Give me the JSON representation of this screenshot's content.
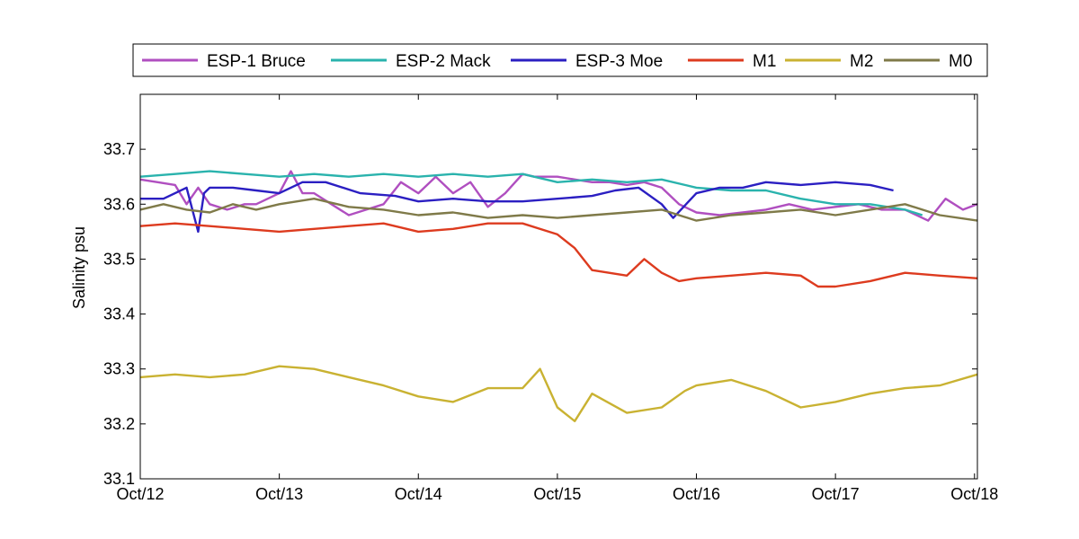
{
  "chart_data": {
    "type": "line",
    "title": "",
    "xlabel": "",
    "ylabel": "Salinity psu",
    "ylim": [
      33.1,
      33.8
    ],
    "yticks": [
      "33.1",
      "33.2",
      "33.3",
      "33.4",
      "33.5",
      "33.6",
      "33.7"
    ],
    "xlim": [
      "2000-10-12",
      "2000-10-18T00:30"
    ],
    "xticks": [
      "Oct/12",
      "Oct/13",
      "Oct/14",
      "Oct/15",
      "Oct/16",
      "Oct/17",
      "Oct/18"
    ],
    "xtick_dates": [
      "2000-10-12",
      "2000-10-13",
      "2000-10-14",
      "2000-10-15",
      "2000-10-16",
      "2000-10-17",
      "2000-10-18"
    ],
    "grid": false,
    "legend_position": "top",
    "series": [
      {
        "name": "ESP-1 Bruce",
        "color": "#b04fc0",
        "x": [
          "2000-10-12T00:00",
          "2000-10-12T03:00",
          "2000-10-12T06:00",
          "2000-10-12T08:00",
          "2000-10-12T10:00",
          "2000-10-12T12:00",
          "2000-10-12T15:00",
          "2000-10-12T18:00",
          "2000-10-12T20:00",
          "2000-10-13T00:00",
          "2000-10-13T02:00",
          "2000-10-13T04:00",
          "2000-10-13T06:00",
          "2000-10-13T09:00",
          "2000-10-13T12:00",
          "2000-10-13T15:00",
          "2000-10-13T18:00",
          "2000-10-13T21:00",
          "2000-10-14T00:00",
          "2000-10-14T03:00",
          "2000-10-14T06:00",
          "2000-10-14T09:00",
          "2000-10-14T12:00",
          "2000-10-14T15:00",
          "2000-10-14T18:00",
          "2000-10-14T20:00",
          "2000-10-15T00:00",
          "2000-10-15T03:00",
          "2000-10-15T06:00",
          "2000-10-15T09:00",
          "2000-10-15T12:00",
          "2000-10-15T15:00",
          "2000-10-15T18:00",
          "2000-10-15T21:00",
          "2000-10-16T00:00",
          "2000-10-16T04:00",
          "2000-10-16T08:00",
          "2000-10-16T12:00",
          "2000-10-16T16:00",
          "2000-10-16T20:00",
          "2000-10-17T00:00",
          "2000-10-17T04:00",
          "2000-10-17T08:00",
          "2000-10-17T12:00",
          "2000-10-17T16:00",
          "2000-10-17T19:00",
          "2000-10-17T22:00",
          "2000-10-18T00:30"
        ],
        "y": [
          33.645,
          33.64,
          33.635,
          33.6,
          33.63,
          33.6,
          33.59,
          33.6,
          33.6,
          33.62,
          33.66,
          33.62,
          33.62,
          33.6,
          33.58,
          33.59,
          33.6,
          33.64,
          33.62,
          33.65,
          33.62,
          33.64,
          33.595,
          33.62,
          33.655,
          33.65,
          33.65,
          33.645,
          33.64,
          33.64,
          33.635,
          33.64,
          33.63,
          33.6,
          33.585,
          33.58,
          33.585,
          33.59,
          33.6,
          33.59,
          33.595,
          33.6,
          33.59,
          33.59,
          33.57,
          33.61,
          33.59,
          33.6
        ]
      },
      {
        "name": "ESP-2 Mack",
        "color": "#2ab3ad",
        "x": [
          "2000-10-12T00:00",
          "2000-10-12T06:00",
          "2000-10-12T12:00",
          "2000-10-12T18:00",
          "2000-10-13T00:00",
          "2000-10-13T06:00",
          "2000-10-13T12:00",
          "2000-10-13T18:00",
          "2000-10-14T00:00",
          "2000-10-14T06:00",
          "2000-10-14T12:00",
          "2000-10-14T18:00",
          "2000-10-15T00:00",
          "2000-10-15T06:00",
          "2000-10-15T12:00",
          "2000-10-15T18:00",
          "2000-10-16T00:00",
          "2000-10-16T06:00",
          "2000-10-16T12:00",
          "2000-10-16T18:00",
          "2000-10-17T00:00",
          "2000-10-17T06:00",
          "2000-10-17T12:00",
          "2000-10-17T15:00"
        ],
        "y": [
          33.65,
          33.655,
          33.66,
          33.655,
          33.65,
          33.655,
          33.65,
          33.655,
          33.65,
          33.655,
          33.65,
          33.655,
          33.64,
          33.645,
          33.64,
          33.645,
          33.63,
          33.625,
          33.625,
          33.61,
          33.6,
          33.6,
          33.59,
          33.58
        ]
      },
      {
        "name": "ESP-3 Moe",
        "color": "#2b1fc2",
        "x": [
          "2000-10-12T00:00",
          "2000-10-12T04:00",
          "2000-10-12T08:00",
          "2000-10-12T10:00",
          "2000-10-12T11:00",
          "2000-10-12T12:00",
          "2000-10-12T16:00",
          "2000-10-12T20:00",
          "2000-10-13T00:00",
          "2000-10-13T04:00",
          "2000-10-13T08:00",
          "2000-10-13T14:00",
          "2000-10-13T20:00",
          "2000-10-14T00:00",
          "2000-10-14T06:00",
          "2000-10-14T12:00",
          "2000-10-14T18:00",
          "2000-10-15T00:00",
          "2000-10-15T06:00",
          "2000-10-15T10:00",
          "2000-10-15T14:00",
          "2000-10-15T18:00",
          "2000-10-15T20:00",
          "2000-10-16T00:00",
          "2000-10-16T04:00",
          "2000-10-16T08:00",
          "2000-10-16T12:00",
          "2000-10-16T18:00",
          "2000-10-17T00:00",
          "2000-10-17T06:00",
          "2000-10-17T10:00"
        ],
        "y": [
          33.61,
          33.61,
          33.63,
          33.55,
          33.62,
          33.63,
          33.63,
          33.625,
          33.62,
          33.64,
          33.64,
          33.62,
          33.615,
          33.605,
          33.61,
          33.605,
          33.605,
          33.61,
          33.615,
          33.625,
          33.63,
          33.6,
          33.575,
          33.62,
          33.63,
          33.63,
          33.64,
          33.635,
          33.64,
          33.635,
          33.625
        ]
      },
      {
        "name": "M1",
        "color": "#dd3b1f",
        "x": [
          "2000-10-12T00:00",
          "2000-10-12T06:00",
          "2000-10-12T12:00",
          "2000-10-12T18:00",
          "2000-10-13T00:00",
          "2000-10-13T06:00",
          "2000-10-13T12:00",
          "2000-10-13T18:00",
          "2000-10-14T00:00",
          "2000-10-14T06:00",
          "2000-10-14T12:00",
          "2000-10-14T18:00",
          "2000-10-15T00:00",
          "2000-10-15T03:00",
          "2000-10-15T06:00",
          "2000-10-15T12:00",
          "2000-10-15T15:00",
          "2000-10-15T18:00",
          "2000-10-15T21:00",
          "2000-10-16T00:00",
          "2000-10-16T06:00",
          "2000-10-16T12:00",
          "2000-10-16T18:00",
          "2000-10-16T21:00",
          "2000-10-17T00:00",
          "2000-10-17T06:00",
          "2000-10-17T12:00",
          "2000-10-17T18:00",
          "2000-10-18T00:30"
        ],
        "y": [
          33.56,
          33.565,
          33.56,
          33.555,
          33.55,
          33.555,
          33.56,
          33.565,
          33.55,
          33.555,
          33.565,
          33.565,
          33.545,
          33.52,
          33.48,
          33.47,
          33.5,
          33.475,
          33.46,
          33.465,
          33.47,
          33.475,
          33.47,
          33.45,
          33.45,
          33.46,
          33.475,
          33.47,
          33.465
        ]
      },
      {
        "name": "M2",
        "color": "#c9b232",
        "x": [
          "2000-10-12T00:00",
          "2000-10-12T06:00",
          "2000-10-12T12:00",
          "2000-10-12T18:00",
          "2000-10-13T00:00",
          "2000-10-13T06:00",
          "2000-10-13T12:00",
          "2000-10-13T18:00",
          "2000-10-14T00:00",
          "2000-10-14T06:00",
          "2000-10-14T12:00",
          "2000-10-14T18:00",
          "2000-10-14T21:00",
          "2000-10-15T00:00",
          "2000-10-15T03:00",
          "2000-10-15T06:00",
          "2000-10-15T12:00",
          "2000-10-15T18:00",
          "2000-10-15T22:00",
          "2000-10-16T00:00",
          "2000-10-16T06:00",
          "2000-10-16T12:00",
          "2000-10-16T18:00",
          "2000-10-17T00:00",
          "2000-10-17T06:00",
          "2000-10-17T12:00",
          "2000-10-17T18:00",
          "2000-10-18T00:30"
        ],
        "y": [
          33.285,
          33.29,
          33.285,
          33.29,
          33.305,
          33.3,
          33.285,
          33.27,
          33.25,
          33.24,
          33.265,
          33.265,
          33.3,
          33.23,
          33.205,
          33.255,
          33.22,
          33.23,
          33.26,
          33.27,
          33.28,
          33.26,
          33.23,
          33.24,
          33.255,
          33.265,
          33.27,
          33.29
        ]
      },
      {
        "name": "M0",
        "color": "#7f7a49",
        "x": [
          "2000-10-12T00:00",
          "2000-10-12T04:00",
          "2000-10-12T08:00",
          "2000-10-12T12:00",
          "2000-10-12T16:00",
          "2000-10-12T20:00",
          "2000-10-13T00:00",
          "2000-10-13T06:00",
          "2000-10-13T12:00",
          "2000-10-13T18:00",
          "2000-10-14T00:00",
          "2000-10-14T06:00",
          "2000-10-14T12:00",
          "2000-10-14T18:00",
          "2000-10-15T00:00",
          "2000-10-15T06:00",
          "2000-10-15T12:00",
          "2000-10-15T18:00",
          "2000-10-16T00:00",
          "2000-10-16T06:00",
          "2000-10-16T12:00",
          "2000-10-16T18:00",
          "2000-10-17T00:00",
          "2000-10-17T06:00",
          "2000-10-17T12:00",
          "2000-10-17T18:00",
          "2000-10-18T00:30"
        ],
        "y": [
          33.59,
          33.6,
          33.59,
          33.585,
          33.6,
          33.59,
          33.6,
          33.61,
          33.595,
          33.59,
          33.58,
          33.585,
          33.575,
          33.58,
          33.575,
          33.58,
          33.585,
          33.59,
          33.57,
          33.58,
          33.585,
          33.59,
          33.58,
          33.59,
          33.6,
          33.58,
          33.57
        ]
      }
    ]
  }
}
